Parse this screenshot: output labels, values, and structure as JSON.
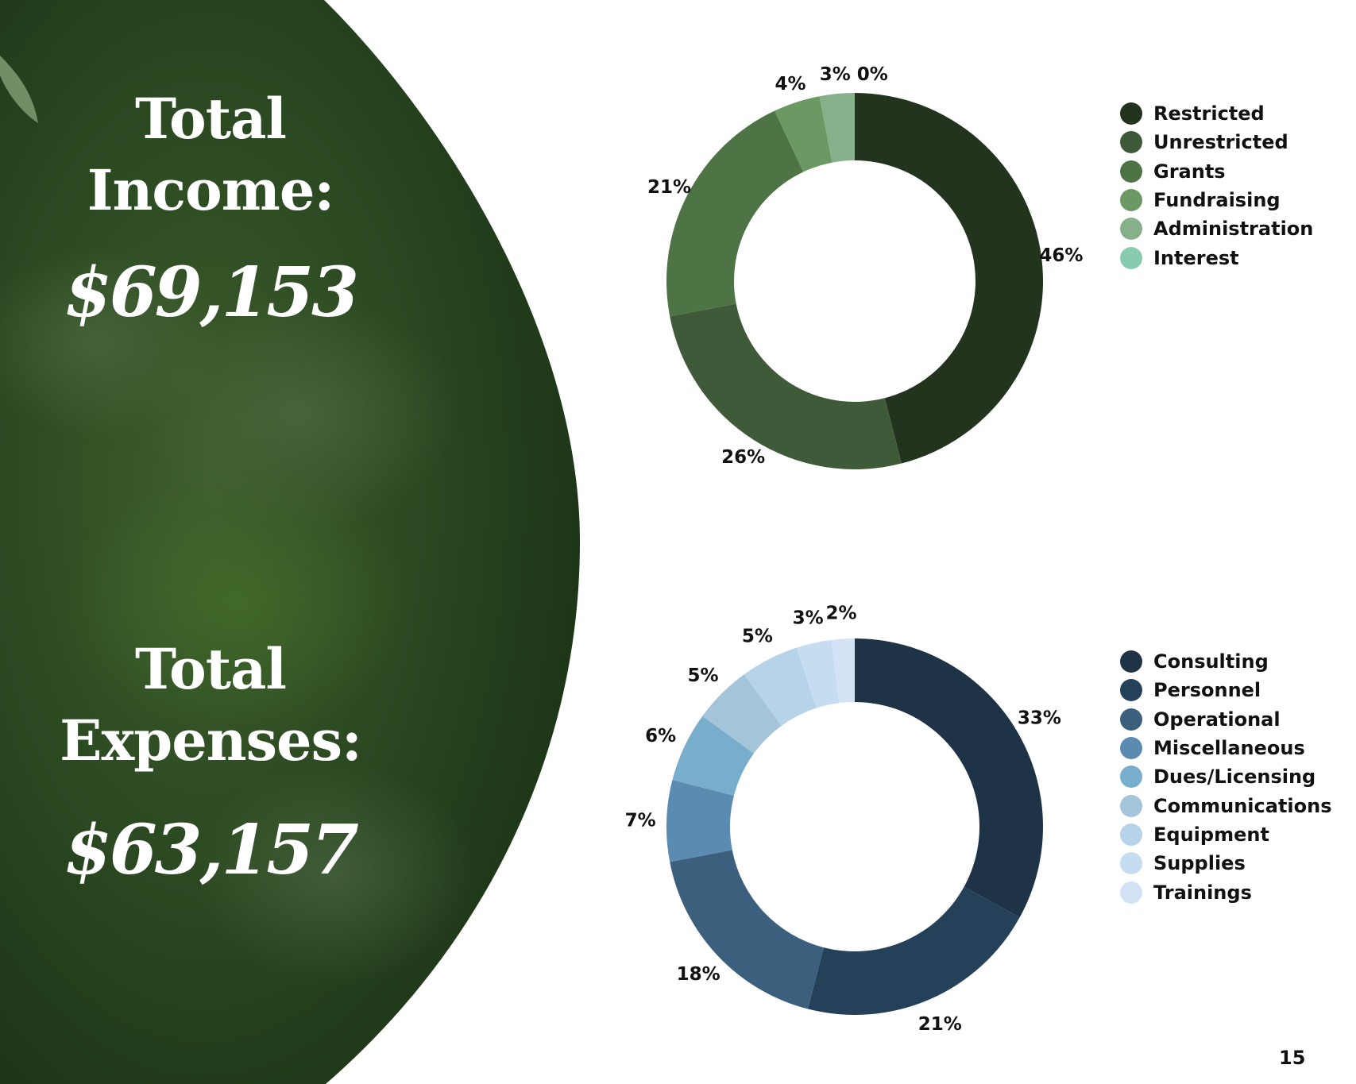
{
  "income": {
    "title_line1": "Total",
    "title_line2": "Income:",
    "amount": "$69,153"
  },
  "expenses": {
    "title_line1": "Total",
    "title_line2": "Expenses:",
    "amount": "$63,157"
  },
  "page_number": "15",
  "chart_data": [
    {
      "type": "pie",
      "title": "",
      "categories": [
        "Restricted",
        "Unrestricted",
        "Grants",
        "Fundraising",
        "Administration",
        "Interest"
      ],
      "values": [
        46,
        26,
        21,
        4,
        3,
        0
      ],
      "labels": [
        "46%",
        "26%",
        "21%",
        "4%",
        "3%",
        "0%"
      ],
      "colors": [
        "#22331e",
        "#3f5a38",
        "#4e7446",
        "#6c9963",
        "#86b08a",
        "#88ccb0"
      ],
      "legend_position": "right"
    },
    {
      "type": "pie",
      "title": "",
      "categories": [
        "Consulting",
        "Personnel",
        "Operational",
        "Miscellaneous",
        "Dues/Licensing",
        "Communications",
        "Equipment",
        "Supplies",
        "Trainings"
      ],
      "values": [
        33,
        21,
        18,
        7,
        6,
        5,
        5,
        3,
        2
      ],
      "labels": [
        "33%",
        "21%",
        "18%",
        "7%",
        "6%",
        "5%",
        "5%",
        "3%",
        "2%"
      ],
      "colors": [
        "#1e3345",
        "#254059",
        "#3b5f7d",
        "#5b8bb0",
        "#78aecb",
        "#a4c4d9",
        "#b6d3ea",
        "#c6dcf1",
        "#d3e2f5"
      ],
      "legend_position": "right"
    }
  ]
}
